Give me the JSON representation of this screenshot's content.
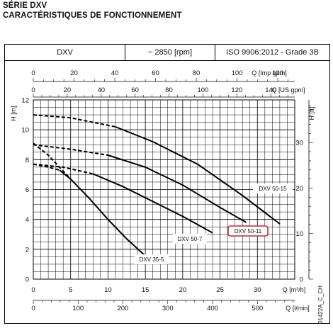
{
  "header": {
    "series_title": "SÉRIE DXV",
    "subtitle": "CARACTÉRISTIQUES DE FONCTIONNEMENT"
  },
  "spec": {
    "model": "DXV",
    "speed": "~ 2850 [rpm]",
    "standard": "ISO 9906:2012 - Grade 3B"
  },
  "chart_data": {
    "type": "line",
    "title": "",
    "xlabel": "Q [m³/h]",
    "ylabel": "H [m]",
    "xlim": [
      0,
      35
    ],
    "ylim": [
      0,
      12
    ],
    "grid": true,
    "y_ticks": [
      "0",
      "2",
      "4",
      "6",
      "8",
      "10",
      "12"
    ],
    "x_ticks": [
      "0",
      "5",
      "10",
      "15",
      "20",
      "25",
      "30"
    ],
    "y_right": {
      "label": "H [ft]",
      "ticks": [
        "0",
        "10",
        "20",
        "30"
      ]
    },
    "top_axis_imp": {
      "label": "Q [Imp gpm]",
      "ticks": [
        "0",
        "20",
        "40",
        "60",
        "80",
        "100",
        "120"
      ]
    },
    "top_axis_us": {
      "label": "Q [US gpm]",
      "ticks": [
        "0",
        "20",
        "40",
        "60",
        "80",
        "100",
        "120",
        "140"
      ]
    },
    "bottom_axis_lmin": {
      "label": "Q [l/min]",
      "ticks": [
        "0",
        "100",
        "200",
        "300",
        "400",
        "500"
      ]
    },
    "code": "01422A_C_CH",
    "series": [
      {
        "name": "DXV 35-5",
        "dash_until": 3.5,
        "points": [
          [
            0,
            7.7
          ],
          [
            2,
            7.5
          ],
          [
            3.5,
            7.3
          ],
          [
            5,
            6.7
          ],
          [
            7.5,
            5.4
          ],
          [
            10,
            4.0
          ],
          [
            12.5,
            2.7
          ],
          [
            16,
            1.1
          ]
        ]
      },
      {
        "name": "DXV 50-7",
        "dash_until": 8,
        "points": [
          [
            0,
            7.7
          ],
          [
            4,
            7.5
          ],
          [
            8,
            7.05
          ],
          [
            12,
            6.2
          ],
          [
            16,
            5.2
          ],
          [
            20,
            4.2
          ],
          [
            24,
            3.1
          ]
        ]
      },
      {
        "name": "DXV 50-11",
        "dash_until": 10,
        "points": [
          [
            0,
            9.0
          ],
          [
            5,
            8.7
          ],
          [
            10,
            8.3
          ],
          [
            15,
            7.5
          ],
          [
            20,
            6.3
          ],
          [
            25,
            4.8
          ],
          [
            28.5,
            3.8
          ]
        ]
      },
      {
        "name": "DXV 50-15",
        "dash_until": 11,
        "points": [
          [
            0,
            11.0
          ],
          [
            5,
            10.8
          ],
          [
            11,
            10.2
          ],
          [
            16,
            9.2
          ],
          [
            22,
            7.7
          ],
          [
            28,
            5.6
          ],
          [
            33,
            3.7
          ]
        ]
      },
      {
        "name": "",
        "dash_until": 5,
        "points": [
          [
            0,
            9.1
          ],
          [
            2,
            8.3
          ],
          [
            5,
            6.7
          ]
        ]
      }
    ]
  }
}
